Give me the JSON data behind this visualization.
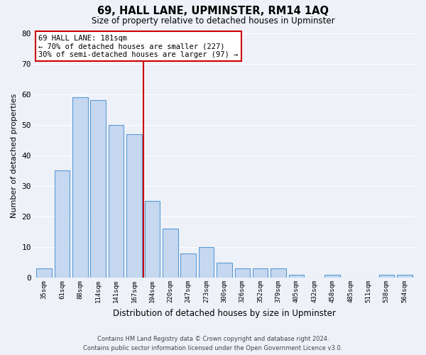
{
  "title": "69, HALL LANE, UPMINSTER, RM14 1AQ",
  "subtitle": "Size of property relative to detached houses in Upminster",
  "bar_labels": [
    "35sqm",
    "61sqm",
    "88sqm",
    "114sqm",
    "141sqm",
    "167sqm",
    "194sqm",
    "220sqm",
    "247sqm",
    "273sqm",
    "300sqm",
    "326sqm",
    "352sqm",
    "379sqm",
    "405sqm",
    "432sqm",
    "458sqm",
    "485sqm",
    "511sqm",
    "538sqm",
    "564sqm"
  ],
  "bar_values": [
    3,
    35,
    59,
    58,
    50,
    47,
    25,
    16,
    8,
    10,
    5,
    3,
    3,
    3,
    1,
    0,
    1,
    0,
    0,
    1,
    1
  ],
  "bar_color": "#c5d8f0",
  "bar_edge_color": "#5b9bd5",
  "vline_color": "#cc0000",
  "ylabel": "Number of detached properties",
  "xlabel": "Distribution of detached houses by size in Upminster",
  "ylim": [
    0,
    80
  ],
  "yticks": [
    0,
    10,
    20,
    30,
    40,
    50,
    60,
    70,
    80
  ],
  "annotation_title": "69 HALL LANE: 181sqm",
  "annotation_line1": "← 70% of detached houses are smaller (227)",
  "annotation_line2": "30% of semi-detached houses are larger (97) →",
  "annotation_box_color": "#ffffff",
  "annotation_box_edge": "#cc0000",
  "footer_line1": "Contains HM Land Registry data © Crown copyright and database right 2024.",
  "footer_line2": "Contains public sector information licensed under the Open Government Licence v3.0.",
  "background_color": "#eef2f8",
  "grid_color": "#ffffff"
}
